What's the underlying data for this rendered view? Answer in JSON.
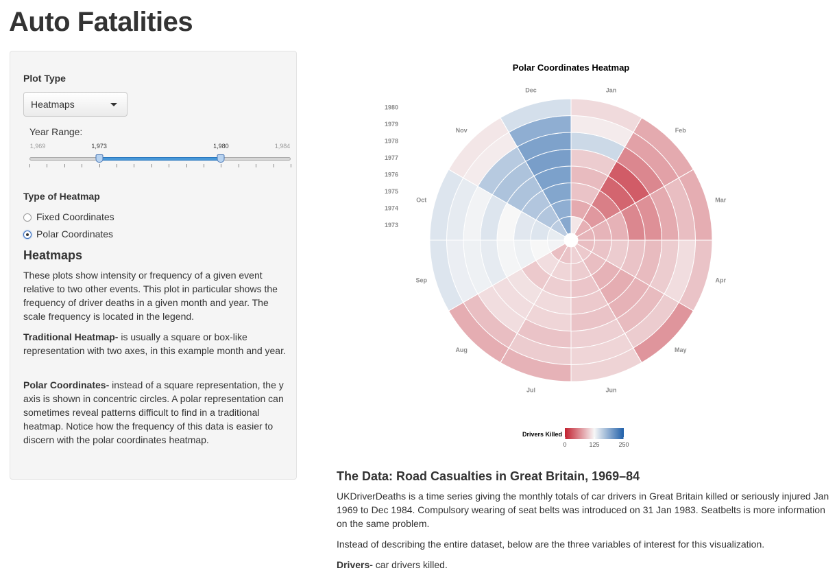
{
  "app_title": "Auto Fatalities",
  "sidebar": {
    "plot_type_label": "Plot Type",
    "plot_type_value": "Heatmaps",
    "year_range": {
      "label": "Year Range:",
      "min": 1969,
      "max": 1984,
      "from": 1973,
      "to": 1980,
      "min_label": "1,969",
      "max_label": "1,984",
      "from_label": "1,973",
      "to_label": "1,980"
    },
    "heatmap_type_label": "Type of Heatmap",
    "options": [
      {
        "label": "Fixed Coordinates",
        "checked": false
      },
      {
        "label": "Polar Coordinates",
        "checked": true
      }
    ],
    "section_title": "Heatmaps",
    "para1": "These plots show intensity or frequency of a given event relative to two other events. This plot in particular shows the frequency of driver deaths in a given month and year. The scale frequency is located in the legend.",
    "para2_bold": "Traditional Heatmap-",
    "para2": " is usually a square or box-like representation with two axes, in this example month and year.",
    "para3_bold": "Polar Coordinates-",
    "para3": " instead of a square representation, the y axis is shown in concentric circles. A polar representation can sometimes reveal patterns difficult to find in a traditional heatmap. Notice how the frequency of this data is easier to discern with the polar coordinates heatmap."
  },
  "chart_data": {
    "type": "heatmap",
    "title": "Polar Coordinates Heatmap",
    "coordinate_system": "polar",
    "theta_categories": [
      "Jan",
      "Feb",
      "Mar",
      "Apr",
      "May",
      "Jun",
      "Jul",
      "Aug",
      "Sep",
      "Oct",
      "Nov",
      "Dec"
    ],
    "radial_categories": [
      "1973",
      "1974",
      "1975",
      "1976",
      "1977",
      "1978",
      "1979",
      "1980"
    ],
    "values": [
      [
        115,
        84,
        86,
        92,
        98,
        103,
        95,
        92,
        128,
        134,
        160,
        190
      ],
      [
        80,
        70,
        86,
        95,
        92,
        100,
        105,
        110,
        125,
        140,
        165,
        185
      ],
      [
        95,
        55,
        85,
        100,
        85,
        96,
        101,
        98,
        130,
        138,
        165,
        192
      ],
      [
        90,
        40,
        60,
        95,
        82,
        98,
        108,
        112,
        127,
        125,
        168,
        196
      ],
      [
        100,
        35,
        65,
        90,
        85,
        95,
        105,
        110,
        135,
        140,
        168,
        198
      ],
      [
        150,
        60,
        80,
        100,
        90,
        102,
        95,
        110,
        130,
        128,
        162,
        195
      ],
      [
        118,
        75,
        92,
        110,
        100,
        105,
        100,
        92,
        132,
        135,
        118,
        185
      ],
      [
        108,
        80,
        82,
        95,
        68,
        104,
        85,
        82,
        140,
        140,
        115,
        145
      ]
    ],
    "legend": {
      "title": "Drivers Killed",
      "ticks": [
        0,
        125,
        250
      ],
      "placement": "bottom"
    },
    "color_scale": {
      "low": "#c2202f",
      "mid": "#f7f7f7",
      "high": "#1f5fa9",
      "min": 0,
      "max": 250
    }
  },
  "main": {
    "data_title": "The Data: Road Casualties in Great Britain, 1969–84",
    "para1": "UKDriverDeaths is a time series giving the monthly totals of car drivers in Great Britain killed or seriously injured Jan 1969 to Dec 1984. Compulsory wearing of seat belts was introduced on 31 Jan 1983. Seatbelts is more information on the same problem.",
    "para2": "Instead of describing the entire dataset, below are the three variables of interest for this visualization.",
    "para3_bold": "Drivers-",
    "para3": " car drivers killed."
  }
}
